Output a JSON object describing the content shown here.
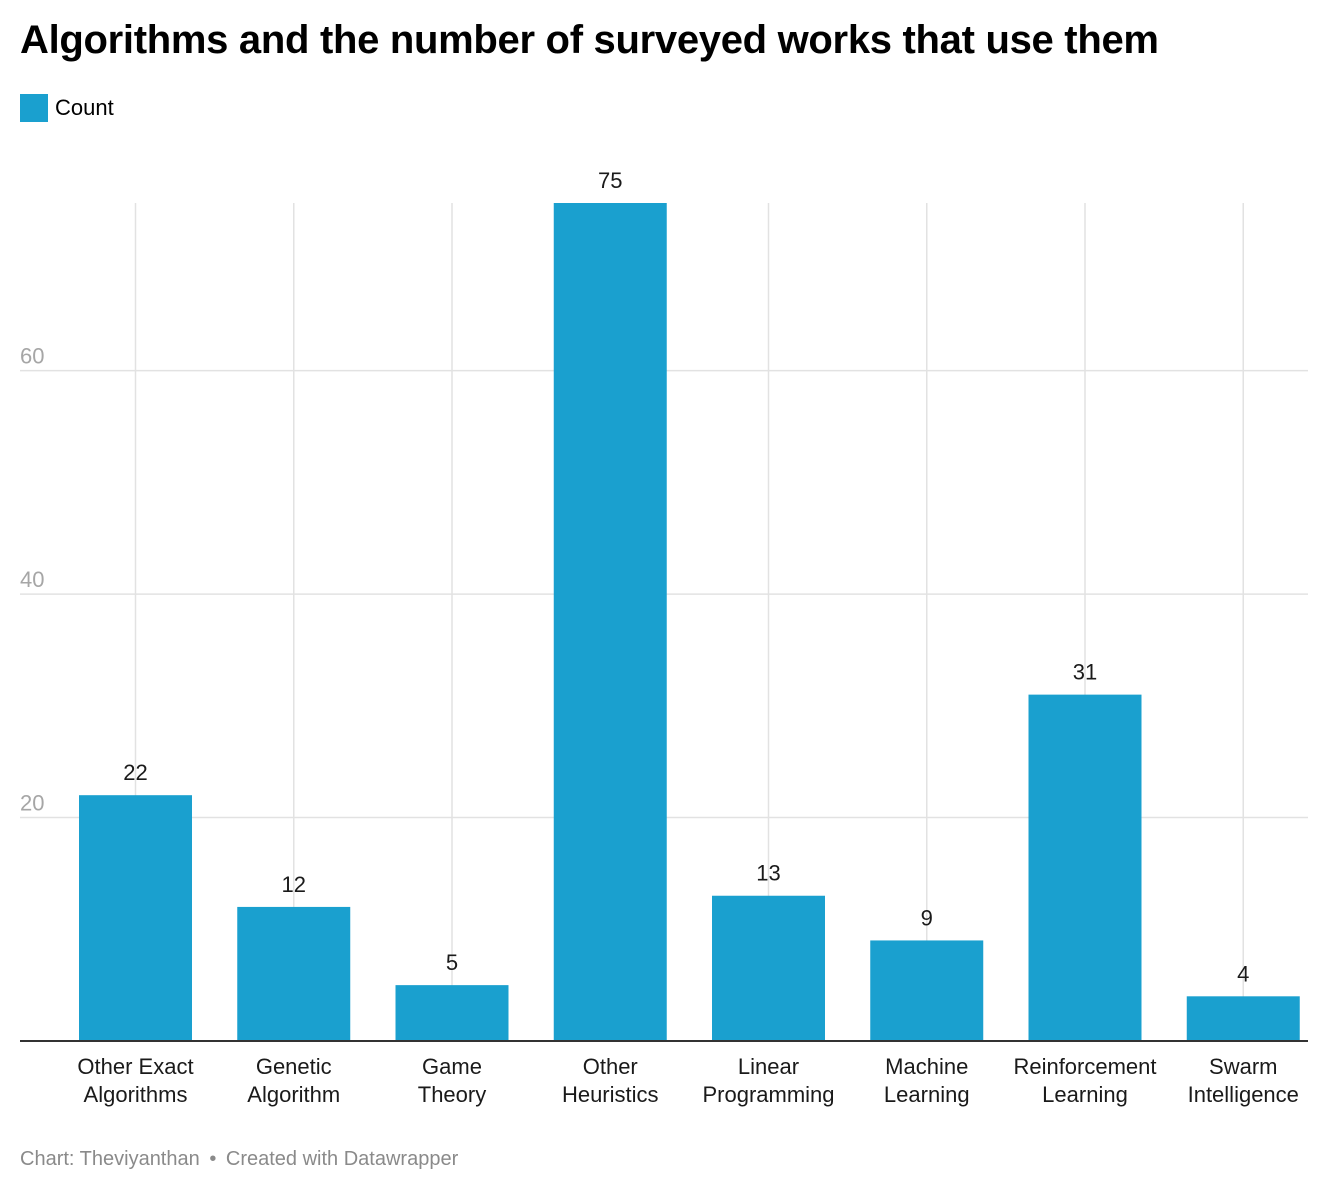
{
  "title": "Algorithms and the number of surveyed works that use them",
  "legend": {
    "label": "Count"
  },
  "footer": {
    "source": "Chart: Theviyanthan",
    "separator": "•",
    "credit": "Created with Datawrapper"
  },
  "colors": {
    "bar": "#1aa0cf",
    "grid": "#e2e2e2",
    "axis_text": "#a6a6a6",
    "baseline": "#333333"
  },
  "chart_data": {
    "type": "bar",
    "categories": [
      [
        "Other Exact",
        "Algorithms"
      ],
      [
        "Genetic",
        "Algorithm"
      ],
      [
        "Game",
        "Theory"
      ],
      [
        "Other",
        "Heuristics"
      ],
      [
        "Linear",
        "Programming"
      ],
      [
        "Machine",
        "Learning"
      ],
      [
        "Reinforcement",
        "Learning"
      ],
      [
        "Swarm",
        "Intelligence"
      ]
    ],
    "series": [
      {
        "name": "Count",
        "values": [
          22,
          12,
          5,
          75,
          13,
          9,
          31,
          4
        ]
      }
    ],
    "ylim": [
      0,
      75
    ],
    "yticks": [
      20,
      40,
      60
    ],
    "grid": true,
    "legend_position": "top-left"
  }
}
